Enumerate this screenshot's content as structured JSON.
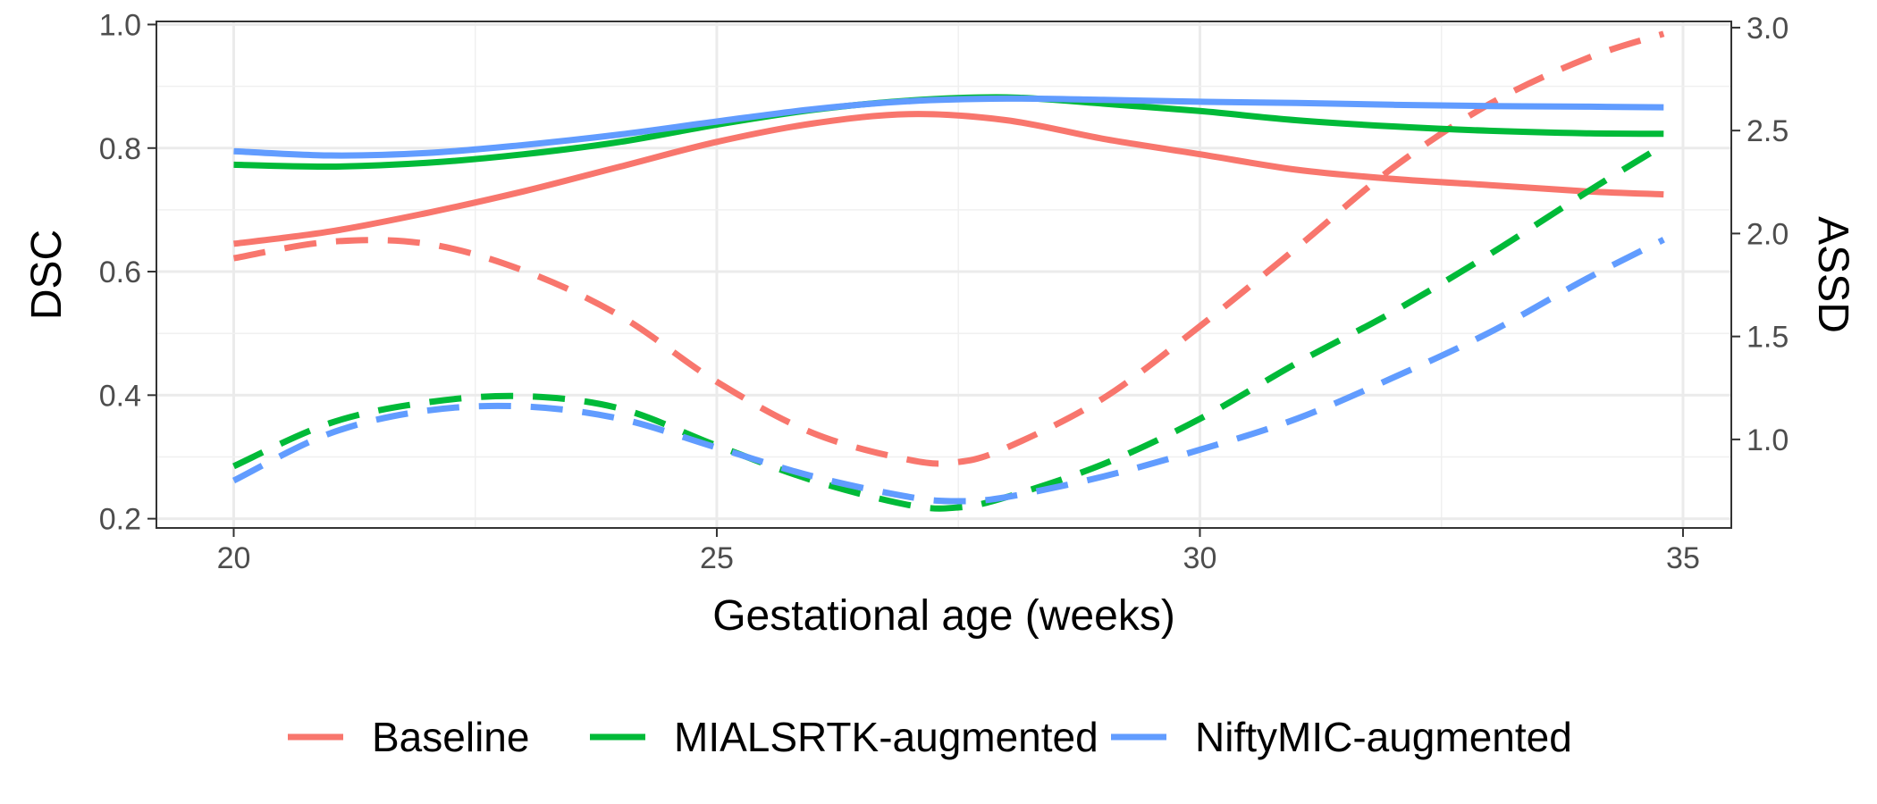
{
  "chart_data": {
    "type": "line",
    "title": "",
    "xlabel": "Gestational age (weeks)",
    "ylabel_left": "DSC",
    "ylabel_right": "ASSD",
    "xlim": [
      19.2,
      35.5
    ],
    "ylim_left": [
      0.185,
      1.005
    ],
    "ylim_right": [
      0.57,
      3.03
    ],
    "x_ticks": [
      20,
      25,
      30,
      35
    ],
    "x_tick_labels": [
      "20",
      "25",
      "30",
      "35"
    ],
    "y_left_ticks": [
      0.2,
      0.4,
      0.6,
      0.8,
      1.0
    ],
    "y_left_tick_labels": [
      "0.2",
      "0.4",
      "0.6",
      "0.8",
      "1.0"
    ],
    "y_right_ticks": [
      1.0,
      1.5,
      2.0,
      2.5,
      3.0
    ],
    "y_right_tick_labels": [
      "1.0",
      "1.5",
      "2.0",
      "2.5",
      "3.0"
    ],
    "grid": true,
    "legend_position": "bottom",
    "series": [
      {
        "name": "Baseline",
        "color": "#F8766D",
        "dsc": {
          "x": [
            20,
            21,
            22,
            23,
            24,
            25,
            26,
            27,
            28,
            29,
            30,
            31,
            32,
            33,
            34,
            34.8
          ],
          "y": [
            0.645,
            0.665,
            0.695,
            0.73,
            0.77,
            0.81,
            0.84,
            0.855,
            0.845,
            0.815,
            0.79,
            0.765,
            0.75,
            0.74,
            0.73,
            0.725
          ]
        },
        "assd": {
          "x": [
            20,
            21,
            22,
            23,
            24,
            25,
            26,
            27,
            27.5,
            28,
            29,
            30,
            31,
            32,
            33,
            34,
            34.8
          ],
          "y": [
            1.88,
            1.96,
            1.95,
            1.82,
            1.6,
            1.28,
            1.03,
            0.9,
            0.89,
            0.96,
            1.2,
            1.55,
            1.93,
            2.32,
            2.63,
            2.85,
            2.97
          ]
        }
      },
      {
        "name": "MIALSRTK-augmented",
        "color": "#00BA38",
        "dsc": {
          "x": [
            20,
            21,
            22,
            23,
            24,
            25,
            26,
            27,
            28,
            29,
            30,
            31,
            32,
            33,
            34,
            34.8
          ],
          "y": [
            0.773,
            0.77,
            0.776,
            0.79,
            0.81,
            0.838,
            0.862,
            0.877,
            0.882,
            0.872,
            0.86,
            0.845,
            0.835,
            0.828,
            0.824,
            0.823
          ]
        },
        "assd": {
          "x": [
            20,
            21,
            22,
            23,
            24,
            25,
            26,
            27,
            27.5,
            28,
            29,
            30,
            31,
            32,
            33,
            34,
            34.8
          ],
          "y": [
            0.87,
            1.08,
            1.18,
            1.21,
            1.15,
            0.97,
            0.8,
            0.68,
            0.67,
            0.72,
            0.88,
            1.1,
            1.37,
            1.62,
            1.9,
            2.2,
            2.43
          ]
        }
      },
      {
        "name": "NiftyMIC-augmented",
        "color": "#619CFF",
        "dsc": {
          "x": [
            20,
            21,
            22,
            23,
            24,
            25,
            26,
            27,
            28,
            29,
            30,
            31,
            32,
            33,
            34,
            34.8
          ],
          "y": [
            0.795,
            0.788,
            0.792,
            0.805,
            0.822,
            0.843,
            0.863,
            0.876,
            0.88,
            0.878,
            0.875,
            0.873,
            0.87,
            0.868,
            0.867,
            0.866
          ]
        },
        "assd": {
          "x": [
            20,
            21,
            22,
            23,
            24,
            25,
            26,
            27,
            27.5,
            28,
            29,
            30,
            31,
            32,
            33,
            34,
            34.8
          ],
          "y": [
            0.8,
            1.03,
            1.14,
            1.16,
            1.1,
            0.96,
            0.82,
            0.72,
            0.7,
            0.72,
            0.82,
            0.95,
            1.1,
            1.3,
            1.52,
            1.78,
            1.97
          ]
        }
      }
    ]
  }
}
